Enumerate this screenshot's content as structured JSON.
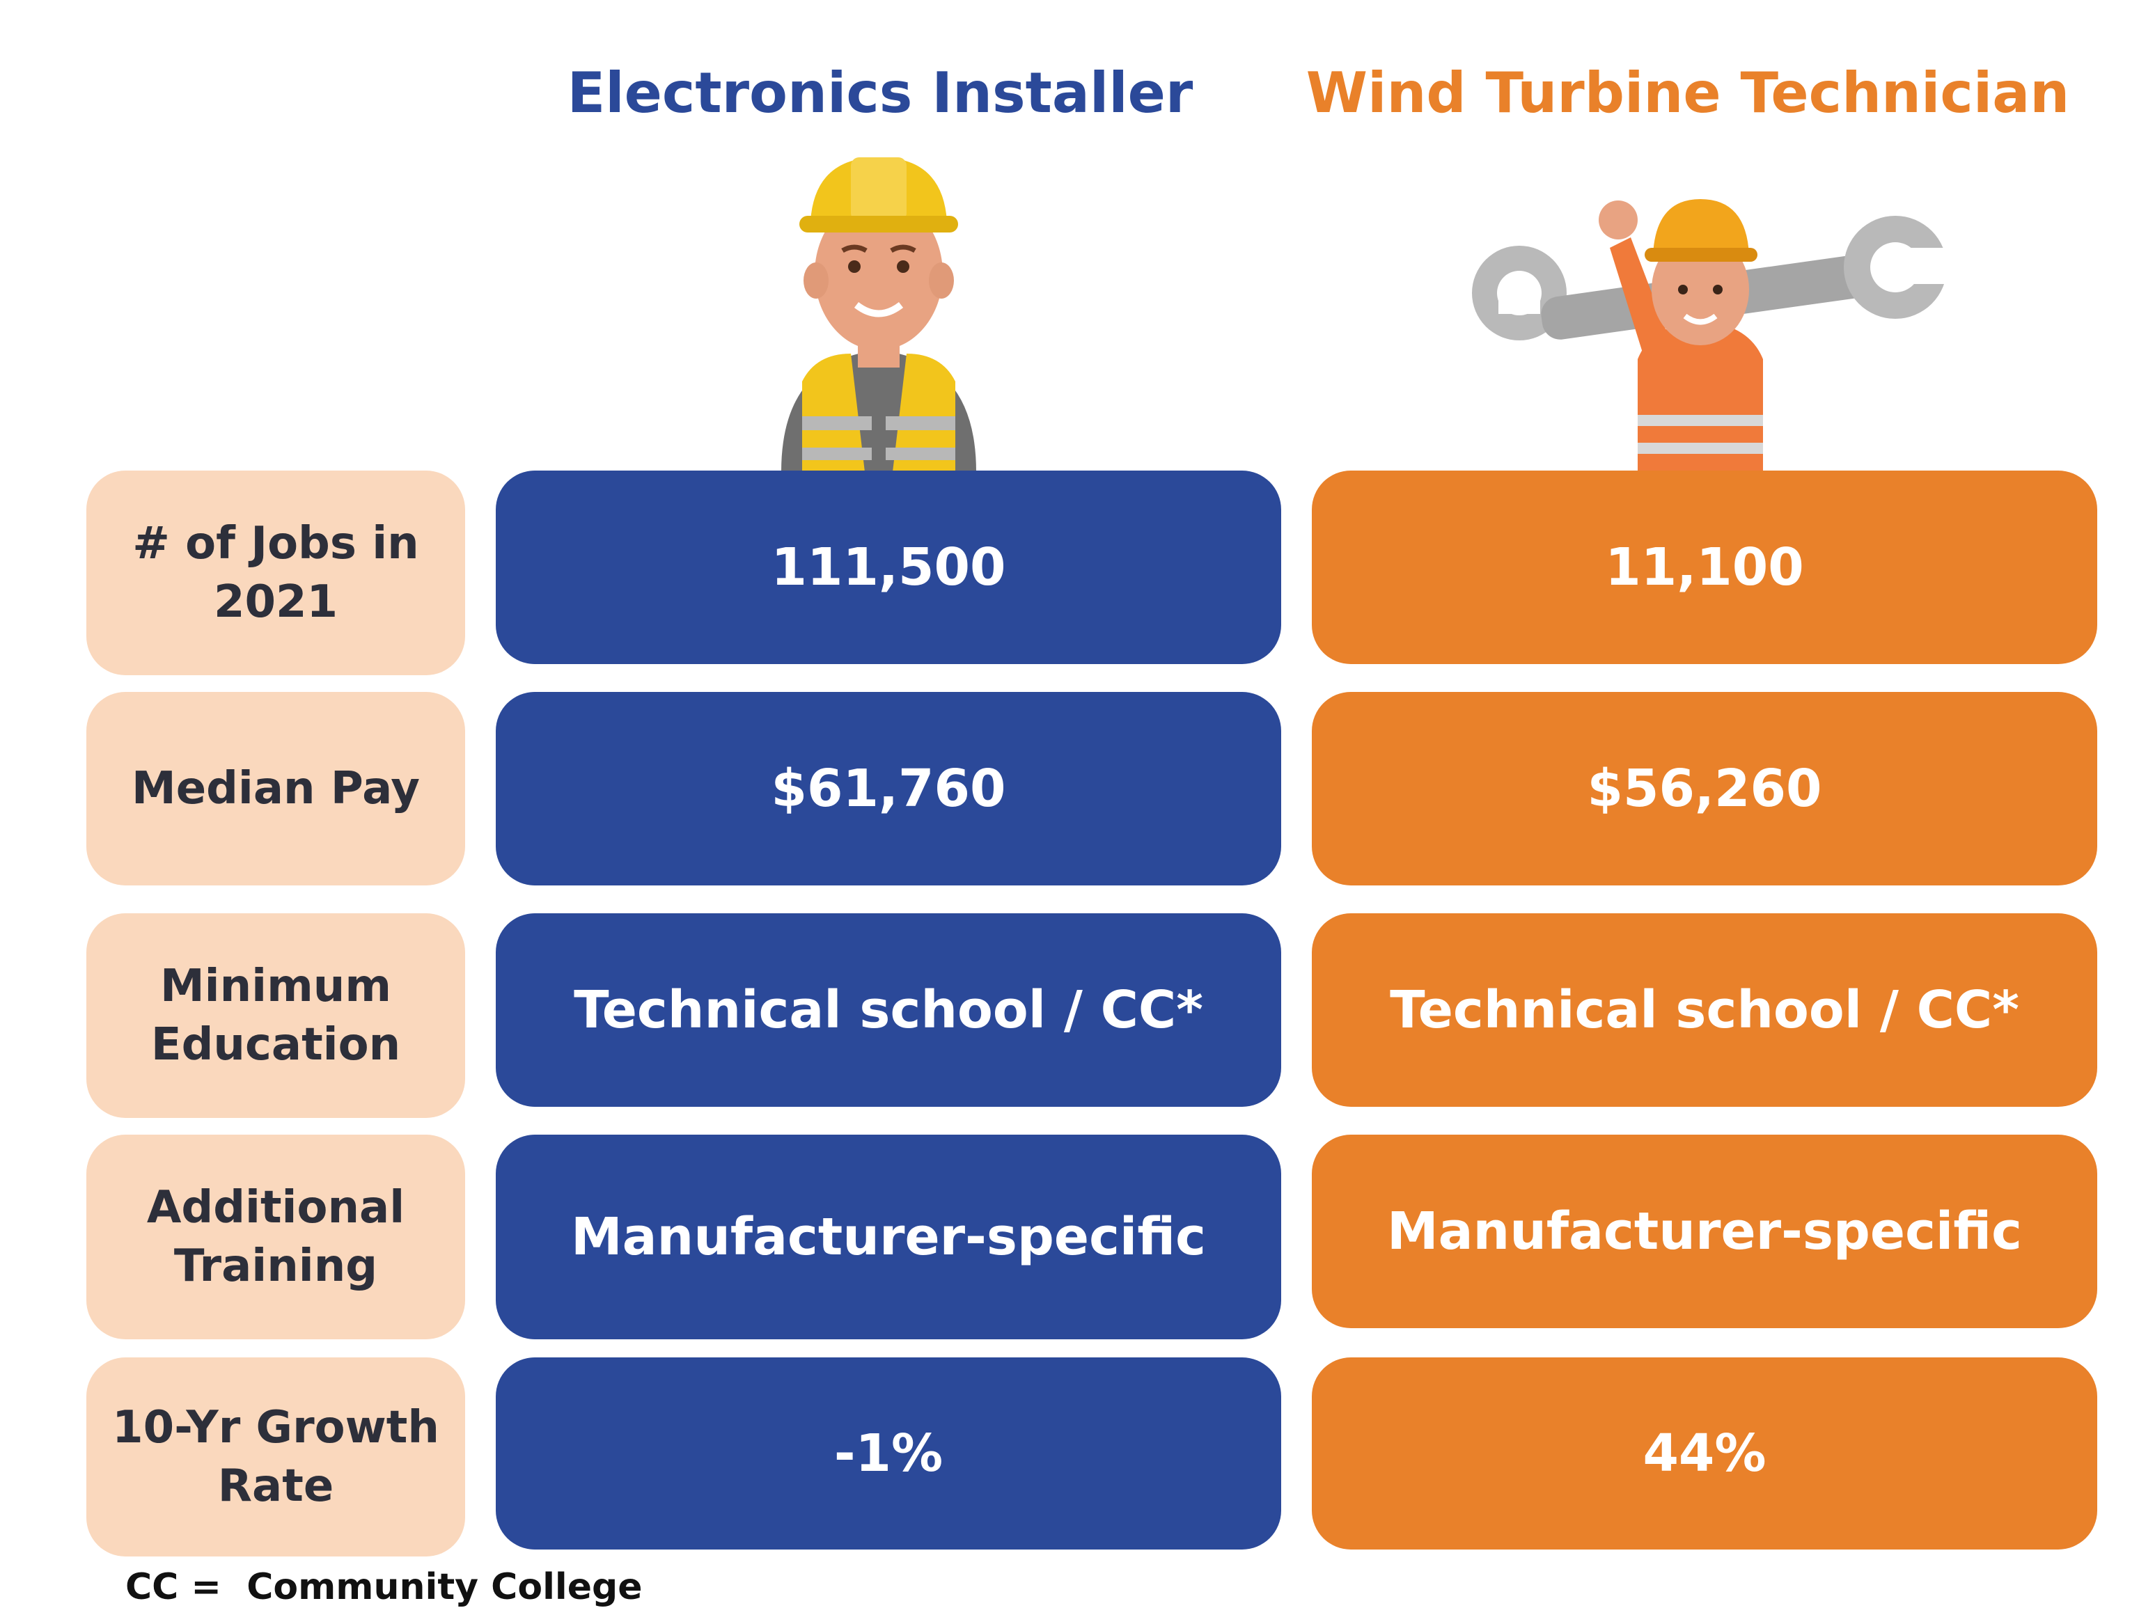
{
  "columns": {
    "left": {
      "title": "Electronics Installer",
      "color": "#2b4999",
      "illustration": "construction-worker-hardhat-vest-icon"
    },
    "right": {
      "title": "Wind Turbine Technician",
      "color": "#e9812a",
      "illustration": "technician-with-wrench-icon"
    }
  },
  "label_color": "#fad8bd",
  "rows": [
    {
      "label": "# of Jobs in 2021",
      "left": "111,500",
      "right": "11,100"
    },
    {
      "label": "Median Pay",
      "left": "$61,760",
      "right": "$56,260"
    },
    {
      "label": "Minimum Education",
      "left": "Technical school / CC*",
      "right": "Technical school / CC*"
    },
    {
      "label": "Additional Training",
      "left": "Manufacturer-specific",
      "right": "Manufacturer-specific"
    },
    {
      "label": "10-Yr Growth Rate",
      "left": "-1%",
      "right": "44%"
    }
  ],
  "footnote": "CC =  Community College"
}
